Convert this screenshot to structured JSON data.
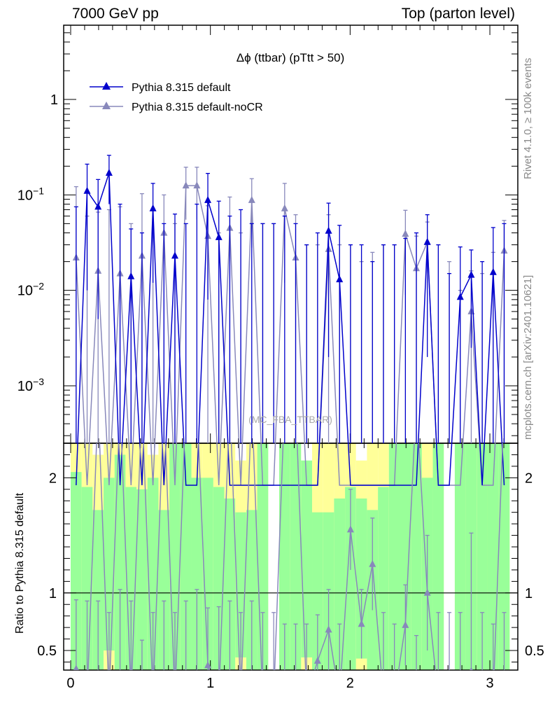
{
  "header": {
    "left": "7000 GeV pp",
    "right": "Top (parton level)"
  },
  "side_texts": {
    "rivet": "Rivet 4.1.0, ≥ 100k events",
    "mcplots": "mcplots.cern.ch [arXiv:2401.10621]"
  },
  "chart_data": {
    "type": "line",
    "title": "Δϕ (ttbar) (pTtt > 50)",
    "watermark": "(MC_FBA_TTBAR)",
    "xlabel": "",
    "ylabel": "",
    "ratio_ylabel": "Ratio to Pythia 8.315 default",
    "xlim": [
      -0.05,
      3.2
    ],
    "ylim": [
      0.00025,
      6
    ],
    "ratio_ylim": [
      0.33,
      2.3
    ],
    "y_scale": "log",
    "x_ticks": [
      "0",
      "1",
      "2",
      "3"
    ],
    "y_ticks": [
      "1",
      "10⁻¹",
      "10⁻²",
      "10⁻³"
    ],
    "ratio_ticks": [
      "0.5",
      "1",
      "2"
    ],
    "legend_position": "top-left",
    "colors": {
      "default": "#0000cc",
      "nocr": "#8888bb",
      "band_inner": "#99ff99",
      "band_outer": "#ffff99"
    },
    "x": [
      0.0393,
      0.1178,
      0.1963,
      0.2749,
      0.3534,
      0.432,
      0.5105,
      0.589,
      0.6676,
      0.7461,
      0.8247,
      0.9032,
      0.9817,
      1.0603,
      1.1388,
      1.2174,
      1.2959,
      1.3744,
      1.453,
      1.5315,
      1.6101,
      1.6886,
      1.7671,
      1.8457,
      1.9242,
      2.0028,
      2.0813,
      2.1598,
      2.2384,
      2.3169,
      2.3955,
      2.474,
      2.5525,
      2.6311,
      2.7096,
      2.7882,
      2.8667,
      2.9452,
      3.0238,
      3.1023
    ],
    "series": [
      {
        "name": "Pythia 8.315 default",
        "values": [
          0,
          0.11,
          0.075,
          0.17,
          0,
          0.014,
          0,
          0.072,
          0,
          0.023,
          0,
          0,
          0.088,
          0.036,
          0,
          0,
          0,
          0,
          0,
          0,
          0,
          0,
          0,
          0.042,
          0.013,
          0,
          0,
          0,
          0,
          0,
          0,
          0,
          0.032,
          0,
          0,
          0.0085,
          0.0145,
          0,
          0.0155,
          0
        ],
        "errors": [
          0.075,
          0.1,
          0.07,
          0.09,
          0.08,
          0.03,
          0.04,
          0.06,
          0.05,
          0.04,
          0.05,
          0.08,
          0.08,
          0.05,
          0.06,
          0.07,
          0.05,
          0.05,
          0.05,
          0.06,
          0.05,
          0.03,
          0.04,
          0.04,
          0.035,
          0.03,
          0.03,
          0.02,
          0.03,
          0.03,
          0.035,
          0.04,
          0.03,
          0.03,
          0.015,
          0.02,
          0.012,
          0.02,
          0.03,
          0.05
        ]
      },
      {
        "name": "Pythia 8.315 default-noCR",
        "values": [
          0.022,
          0,
          0.016,
          0,
          0.015,
          0,
          0.023,
          0,
          0.04,
          0,
          0.125,
          0.125,
          0.037,
          0,
          0.045,
          0,
          0.088,
          0,
          0,
          0.072,
          0.022,
          0,
          0,
          0.027,
          0,
          0,
          0,
          0,
          0,
          0,
          0.039,
          0.017,
          0.032,
          0,
          0,
          0,
          0.006,
          0,
          0,
          0.026
        ],
        "errors": [
          0.1,
          0.06,
          0.05,
          0.07,
          0.06,
          0.05,
          0.08,
          0.07,
          0.06,
          0.05,
          0.07,
          0.07,
          0.04,
          0.04,
          0.05,
          0.04,
          0.06,
          0.05,
          0.05,
          0.06,
          0.04,
          0.03,
          0.03,
          0.035,
          0.03,
          0.03,
          0.02,
          0.025,
          0.03,
          0.03,
          0.03,
          0.02,
          0.02,
          0.03,
          0.02,
          0.01,
          0.01,
          0.015,
          0.025,
          0.028
        ]
      }
    ],
    "ratio": {
      "nocr": [
        0.34,
        0,
        0,
        0,
        0,
        0,
        0,
        0,
        0,
        0,
        0,
        0,
        0.37,
        0,
        0,
        0,
        0,
        0,
        0,
        0,
        0,
        0,
        0.41,
        0.68,
        0,
        1.55,
        0.73,
        1.25,
        0,
        0,
        0.72,
        0,
        1.0,
        0,
        0,
        0,
        0.32,
        0,
        0,
        0
      ],
      "nocr_err": [
        0.6,
        0.6,
        0.6,
        0.5,
        0.7,
        0.6,
        0.26,
        0.5,
        0.6,
        0.5,
        0.6,
        0.7,
        0.5,
        0.55,
        0.6,
        0.5,
        0.6,
        0.5,
        0.5,
        0.4,
        0.4,
        0.4,
        0.4,
        0.35,
        0.4,
        0.35,
        0.3,
        0.4,
        0.5,
        0.4,
        0.35,
        0.3,
        0.5,
        0.5,
        0.5,
        0.5,
        1.2,
        0.5,
        0.4,
        0.5
      ],
      "band_inner_top": [
        2.3,
        2.3,
        2.3,
        2.3,
        2.3,
        2.3,
        2.3,
        2.3,
        2.3,
        2.3,
        2.3,
        2.3,
        2.3,
        2.3,
        2.3,
        2.3,
        2.3,
        2.3,
        0,
        2.3,
        2.3,
        2.3,
        2.3,
        2.3,
        2.3,
        2.3,
        2.3,
        2.3,
        2.3,
        2.3,
        2.3,
        2.3,
        2.3,
        2.3,
        0,
        2.3,
        2.3,
        2.3,
        2.3,
        2.3
      ],
      "band_green_top": [
        2.05,
        1.92,
        1.72,
        2.0,
        2.2,
        1.92,
        1.9,
        2.0,
        1.72,
        2.3,
        2.3,
        2.0,
        2.0,
        1.92,
        1.82,
        1.7,
        1.72,
        2.3,
        0,
        2.3,
        2.3,
        2.3,
        1.7,
        1.7,
        1.82,
        1.92,
        1.82,
        1.72,
        1.92,
        2.3,
        2.3,
        2.3,
        2.0,
        2.3,
        0,
        2.3,
        2.3,
        2.3,
        2.3,
        2.3
      ],
      "band_white_top": [
        2.3,
        2.3,
        2.2,
        2.3,
        2.3,
        2.3,
        2.3,
        2.2,
        2.3,
        2.3,
        2.3,
        2.3,
        2.3,
        2.3,
        2.3,
        2.15,
        2.3,
        2.3,
        0,
        2.3,
        2.3,
        2.15,
        2.3,
        2.3,
        2.3,
        2.3,
        2.15,
        2.3,
        2.3,
        2.3,
        2.3,
        2.3,
        2.3,
        2.3,
        0,
        2.3,
        2.3,
        2.3,
        2.3,
        2.3
      ],
      "band_bottom_yellow": [
        0,
        0,
        0,
        0.5,
        0,
        0,
        0,
        0,
        0,
        0,
        0,
        0,
        0,
        0,
        0,
        0.44,
        0,
        0,
        0,
        0,
        0,
        0.44,
        0,
        0,
        0,
        0,
        0.43,
        0,
        0,
        0,
        0,
        0,
        0,
        0,
        0,
        0,
        0,
        0,
        0,
        0
      ]
    }
  }
}
